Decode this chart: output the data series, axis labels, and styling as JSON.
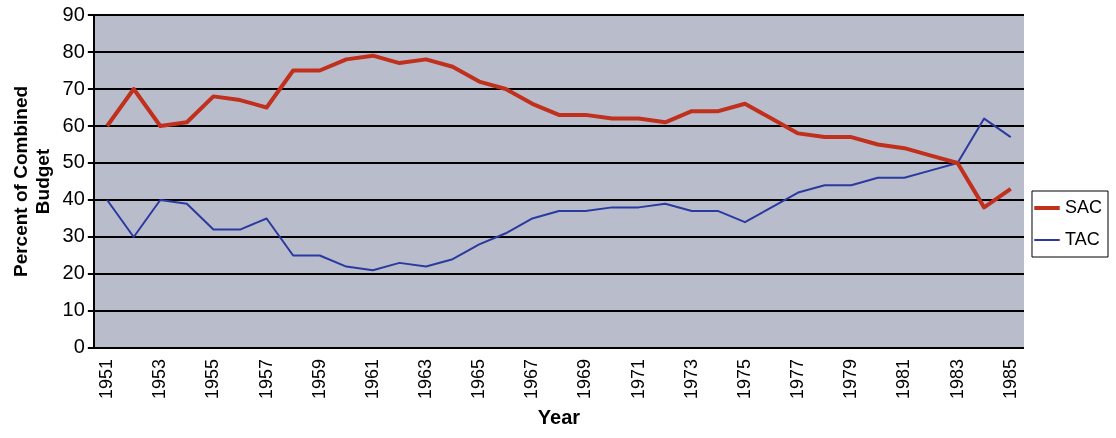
{
  "chart_data": {
    "type": "line",
    "xlabel": "Year",
    "ylabel": "Percent of Combined Budget",
    "categories": [
      "1951",
      null,
      "1953",
      null,
      "1955",
      null,
      "1957",
      null,
      "1959",
      null,
      "1961",
      null,
      "1963",
      null,
      "1965",
      null,
      "1967",
      null,
      "1969",
      null,
      "1971",
      null,
      "1973",
      null,
      "1975",
      null,
      "1977",
      null,
      "1979",
      null,
      "1981",
      null,
      "1983",
      null,
      "1985"
    ],
    "series": [
      {
        "name": "SAC",
        "color": "#c0301c",
        "values": [
          60,
          70,
          60,
          61,
          68,
          67,
          65,
          75,
          75,
          78,
          79,
          77,
          78,
          76,
          72,
          70,
          66,
          63,
          63,
          62,
          62,
          61,
          64,
          64,
          66,
          62,
          58,
          57,
          57,
          55,
          54,
          52,
          50,
          38,
          43
        ]
      },
      {
        "name": "TAC",
        "color": "#2a3aa0",
        "values": [
          40,
          30,
          40,
          39,
          32,
          32,
          35,
          25,
          25,
          22,
          21,
          23,
          22,
          24,
          28,
          31,
          35,
          37,
          37,
          38,
          38,
          39,
          37,
          37,
          34,
          38,
          42,
          44,
          44,
          46,
          46,
          48,
          50,
          62,
          57
        ]
      }
    ],
    "ylim": [
      0,
      90
    ],
    "yticks": [
      0,
      10,
      20,
      30,
      40,
      50,
      60,
      70,
      80,
      90
    ],
    "grid": "y",
    "legend": "right",
    "marker": "none",
    "line_style": "solid"
  }
}
